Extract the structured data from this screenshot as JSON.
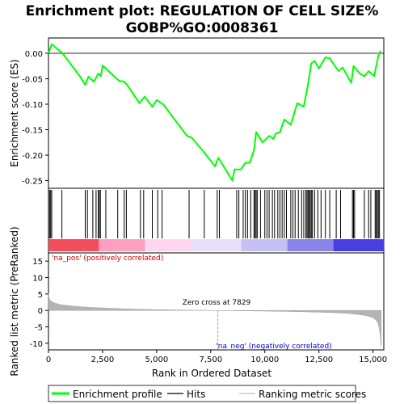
{
  "chart_data": {
    "type": "line",
    "title_line1": "Enrichment plot: REGULATION OF CELL SIZE%",
    "title_line2": "GOBP%GO:0008361",
    "es_panel": {
      "ylabel": "Enrichment score (ES)",
      "ylim": [
        -0.265,
        0.03
      ],
      "yticks": [
        0.0,
        -0.05,
        -0.1,
        -0.15,
        -0.2,
        -0.25
      ],
      "ytick_labels": [
        "0.00",
        "-0.05",
        "-0.10",
        "-0.15",
        "-0.20",
        "-0.25"
      ],
      "series_name": "Enrichment profile",
      "line_color": "#00ff00",
      "points": [
        [
          0,
          0.0
        ],
        [
          150,
          0.018
        ],
        [
          650,
          0.0
        ],
        [
          1450,
          -0.045
        ],
        [
          1700,
          -0.062
        ],
        [
          1850,
          -0.046
        ],
        [
          2100,
          -0.056
        ],
        [
          2300,
          -0.04
        ],
        [
          2420,
          -0.045
        ],
        [
          2500,
          -0.024
        ],
        [
          3150,
          -0.05
        ],
        [
          3300,
          -0.055
        ],
        [
          3450,
          -0.055
        ],
        [
          3600,
          -0.06
        ],
        [
          4200,
          -0.098
        ],
        [
          4450,
          -0.085
        ],
        [
          4800,
          -0.105
        ],
        [
          5000,
          -0.092
        ],
        [
          5300,
          -0.1
        ],
        [
          6400,
          -0.162
        ],
        [
          6600,
          -0.165
        ],
        [
          7150,
          -0.192
        ],
        [
          7700,
          -0.222
        ],
        [
          7850,
          -0.205
        ],
        [
          8500,
          -0.25
        ],
        [
          8600,
          -0.228
        ],
        [
          8900,
          -0.228
        ],
        [
          9100,
          -0.215
        ],
        [
          9300,
          -0.215
        ],
        [
          9500,
          -0.19
        ],
        [
          9600,
          -0.155
        ],
        [
          9900,
          -0.175
        ],
        [
          10200,
          -0.162
        ],
        [
          10400,
          -0.168
        ],
        [
          10500,
          -0.158
        ],
        [
          10700,
          -0.155
        ],
        [
          10900,
          -0.13
        ],
        [
          11200,
          -0.14
        ],
        [
          11500,
          -0.098
        ],
        [
          11800,
          -0.105
        ],
        [
          12000,
          -0.06
        ],
        [
          12150,
          -0.02
        ],
        [
          12300,
          -0.015
        ],
        [
          12500,
          -0.03
        ],
        [
          12800,
          -0.008
        ],
        [
          13000,
          -0.01
        ],
        [
          13400,
          -0.035
        ],
        [
          13600,
          -0.028
        ],
        [
          14000,
          -0.058
        ],
        [
          14100,
          -0.025
        ],
        [
          14400,
          -0.04
        ],
        [
          14600,
          -0.045
        ],
        [
          14800,
          -0.035
        ],
        [
          15050,
          -0.045
        ],
        [
          15250,
          -0.005
        ],
        [
          15350,
          0.005
        ]
      ]
    },
    "hits_panel": {
      "hit_ranks": [
        50,
        100,
        150,
        620,
        1700,
        1800,
        2050,
        2200,
        2300,
        2350,
        2400,
        2650,
        3200,
        3500,
        3600,
        4250,
        4400,
        4800,
        5050,
        5250,
        6500,
        7200,
        7800,
        7900,
        8700,
        8800,
        9000,
        9100,
        9200,
        9350,
        9500,
        9550,
        9600,
        9650,
        9800,
        10000,
        10100,
        10200,
        10350,
        10450,
        10600,
        10700,
        10800,
        10900,
        11000,
        11200,
        11300,
        11400,
        11550,
        11700,
        11800,
        11900,
        11950,
        12000,
        12050,
        12100,
        12150,
        12200,
        12300,
        12450,
        12600,
        12800,
        13000,
        13300,
        13500,
        14050,
        14100,
        14150,
        14600,
        14800,
        14900,
        15100,
        15150,
        15200,
        15250,
        15300
      ],
      "gradient_colors": [
        "#f24d5a",
        "#ff9fc0",
        "#ffd6ee",
        "#e9e0fb",
        "#c4c0f2",
        "#8884ea",
        "#4a3ee0"
      ]
    },
    "metric_panel": {
      "ylabel": "Ranked list metric (PreRanked)",
      "ylim": [
        -12,
        17.5
      ],
      "yticks": [
        15,
        10,
        5,
        0,
        -5,
        -10
      ],
      "ytick_labels": [
        "15",
        "10",
        "5",
        "0",
        "-5",
        "-10"
      ],
      "zero_cross_label": "Zero cross at 7829",
      "zero_cross_rank": 7829,
      "pos_label": "'na_pos' (positively correlated)",
      "neg_label": "'na_neg' (negatively correlated)",
      "curve": [
        [
          0,
          5.2
        ],
        [
          20,
          4.0
        ],
        [
          60,
          3.3
        ],
        [
          150,
          2.7
        ],
        [
          300,
          2.2
        ],
        [
          600,
          1.7
        ],
        [
          1000,
          1.4
        ],
        [
          1500,
          1.1
        ],
        [
          2000,
          0.9
        ],
        [
          3000,
          0.6
        ],
        [
          4000,
          0.4
        ],
        [
          5000,
          0.25
        ],
        [
          6000,
          0.12
        ],
        [
          7000,
          0.05
        ],
        [
          7829,
          0.0
        ],
        [
          9000,
          -0.12
        ],
        [
          10000,
          -0.2
        ],
        [
          11000,
          -0.3
        ],
        [
          12000,
          -0.45
        ],
        [
          13000,
          -0.65
        ],
        [
          13800,
          -0.9
        ],
        [
          14300,
          -1.2
        ],
        [
          14700,
          -1.6
        ],
        [
          15000,
          -2.2
        ],
        [
          15150,
          -3.0
        ],
        [
          15250,
          -4.2
        ],
        [
          15330,
          -7.0
        ],
        [
          15380,
          -11.2
        ]
      ]
    },
    "x_axis": {
      "xlabel": "Rank in Ordered Dataset",
      "xlim": [
        0,
        15500
      ],
      "xticks": [
        0,
        2500,
        5000,
        7500,
        10000,
        12500,
        15000
      ],
      "xtick_labels": [
        "0",
        "2,500",
        "5,000",
        "7,500",
        "10,000",
        "12,500",
        "15,000"
      ]
    },
    "legend": {
      "position": "bottom",
      "items": [
        {
          "label": "Enrichment profile",
          "color": "#00ff00"
        },
        {
          "label": "Hits",
          "color": "#000000"
        },
        {
          "label": "Ranking metric scores",
          "color": "#c0c0c0"
        }
      ]
    }
  }
}
